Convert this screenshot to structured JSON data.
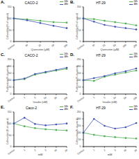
{
  "chart_data": [
    {
      "type": "line",
      "annotation": "A.",
      "title": "CACO-2",
      "x_label": "Quercetin (µM)",
      "y_label": "Cell viability (% of control)",
      "categories": [
        "Control",
        "10",
        "25",
        "50",
        "100"
      ],
      "ylim": [
        0,
        150
      ],
      "yticks": [
        0,
        50,
        100,
        150
      ],
      "series": [
        {
          "name": "24h",
          "color": "#4caf50",
          "marker": "square",
          "values": [
            100,
            96,
            90,
            84,
            82
          ]
        },
        {
          "name": "48h",
          "color": "#3f51b5",
          "marker": "circle",
          "values": [
            100,
            92,
            80,
            68,
            58
          ]
        }
      ]
    },
    {
      "type": "line",
      "annotation": "B.",
      "title": "HT-29",
      "x_label": "Quercetin (µM)",
      "y_label": "Cell viability (% of control)",
      "categories": [
        "Control",
        "10",
        "25",
        "50",
        "100",
        "200"
      ],
      "ylim": [
        0,
        150
      ],
      "yticks": [
        0,
        50,
        100,
        150
      ],
      "series": [
        {
          "name": "24h",
          "color": "#4caf50",
          "marker": "square",
          "values": [
            100,
            97,
            90,
            84,
            78,
            70
          ]
        },
        {
          "name": "48h",
          "color": "#3f51b5",
          "marker": "circle",
          "values": [
            100,
            86,
            72,
            64,
            58,
            52
          ]
        }
      ]
    },
    {
      "type": "line",
      "annotation": "C.",
      "title": "CACO-2",
      "x_label": "Insulin (nM)",
      "y_label": "Proliferation (% of control)",
      "categories": [
        "Control",
        "1",
        "5",
        "10",
        "50",
        "100"
      ],
      "ylim": [
        0,
        250
      ],
      "yticks": [
        0,
        50,
        100,
        150,
        200,
        250
      ],
      "series": [
        {
          "name": "24h",
          "color": "#4caf50",
          "marker": "square",
          "values": [
            100,
            108,
            140,
            155,
            170,
            182
          ]
        },
        {
          "name": "48h",
          "color": "#3f51b5",
          "marker": "circle",
          "values": [
            100,
            112,
            145,
            160,
            175,
            190
          ]
        }
      ]
    },
    {
      "type": "line",
      "annotation": "D.",
      "title": "HT-29",
      "x_label": "Insulin (nM)",
      "y_label": "Proliferation (% of control)",
      "categories": [
        "Control",
        "1",
        "5",
        "10",
        "50",
        "100"
      ],
      "ylim": [
        0,
        250
      ],
      "yticks": [
        0,
        50,
        100,
        150,
        200,
        250
      ],
      "series": [
        {
          "name": "24h",
          "color": "#4caf50",
          "marker": "square",
          "values": [
            100,
            95,
            125,
            140,
            155,
            170
          ]
        },
        {
          "name": "48h",
          "color": "#3f51b5",
          "marker": "circle",
          "values": [
            100,
            115,
            130,
            150,
            165,
            185
          ]
        }
      ]
    },
    {
      "type": "line",
      "annotation": "E.",
      "title": "Caco-2",
      "x_label": "mM",
      "y_label": "Cell number (% of control)",
      "categories": [
        "Control",
        "1",
        "2",
        "5",
        "10",
        "20"
      ],
      "ylim": [
        0,
        150
      ],
      "yticks": [
        0,
        50,
        100,
        150
      ],
      "series": [
        {
          "name": "24h",
          "color": "#4caf50",
          "marker": "square",
          "values": [
            100,
            88,
            80,
            75,
            72,
            70
          ]
        },
        {
          "name": "48h",
          "color": "#3f51b5",
          "marker": "circle",
          "values": [
            100,
            125,
            98,
            92,
            96,
            100
          ]
        }
      ]
    },
    {
      "type": "line",
      "annotation": "F.",
      "title": "HT-29",
      "x_label": "mM",
      "y_label": "Cell number (% of control)",
      "categories": [
        "Control",
        "1",
        "2",
        "5",
        "10",
        "20"
      ],
      "ylim": [
        0,
        250
      ],
      "yticks": [
        0,
        50,
        100,
        150,
        200,
        250
      ],
      "series": [
        {
          "name": "24h",
          "color": "#4caf50",
          "marker": "square",
          "values": [
            100,
            85,
            75,
            68,
            62,
            58
          ]
        },
        {
          "name": "48h",
          "color": "#3f51b5",
          "marker": "circle",
          "values": [
            100,
            200,
            150,
            130,
            140,
            170
          ]
        }
      ]
    }
  ]
}
